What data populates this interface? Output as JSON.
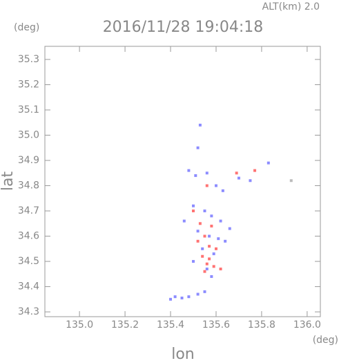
{
  "chart_data": {
    "type": "scatter",
    "title": "2016/11/28 19:04:18",
    "subtitle": "ALT(km) 2.0",
    "y_unit": "(deg)",
    "x_unit": "(deg)",
    "xlabel": "lon",
    "ylabel": "lat",
    "xlim": [
      134.848,
      136.058
    ],
    "ylim": [
      34.281,
      35.352
    ],
    "xticks": [
      {
        "value": 135,
        "label": "135.0"
      },
      135.2,
      135.4,
      135.6,
      135.8,
      {
        "value": 136,
        "label": "136.0"
      }
    ],
    "yticks": [
      34.3,
      34.4,
      34.5,
      34.6,
      34.7,
      34.8,
      34.9,
      {
        "value": 35,
        "label": "35.0"
      },
      35.1,
      35.2,
      35.3
    ],
    "series": [
      {
        "color": "#6f6fff",
        "x": [
          135.53,
          135.52,
          135.48,
          135.51,
          135.56,
          135.6,
          135.63,
          135.7,
          135.75,
          135.83,
          135.5,
          135.55,
          135.58,
          135.62,
          135.46,
          135.52,
          135.57,
          135.61,
          135.66,
          135.54,
          135.59,
          135.64,
          135.5,
          135.56,
          135.58,
          135.42,
          135.45,
          135.48,
          135.52,
          135.4,
          135.55
        ],
        "values": [
          35.04,
          34.95,
          34.86,
          34.84,
          34.85,
          34.8,
          34.78,
          34.83,
          34.82,
          34.89,
          34.72,
          34.7,
          34.68,
          34.66,
          34.66,
          34.62,
          34.6,
          34.59,
          34.63,
          34.55,
          34.53,
          34.58,
          34.5,
          34.47,
          34.44,
          34.36,
          34.355,
          34.36,
          34.37,
          34.35,
          34.38
        ]
      },
      {
        "color": "#ff5050",
        "x": [
          135.77,
          135.69,
          135.56,
          135.5,
          135.53,
          135.58,
          135.55,
          135.52,
          135.57,
          135.6,
          135.54,
          135.56,
          135.59,
          135.55,
          135.62,
          135.57
        ],
        "values": [
          34.86,
          34.85,
          34.8,
          34.7,
          34.65,
          34.64,
          34.6,
          34.58,
          34.56,
          34.55,
          34.52,
          34.49,
          34.48,
          34.46,
          34.47,
          34.51
        ]
      },
      {
        "color": "#aaaaaa",
        "x": [
          135.93
        ],
        "values": [
          34.82
        ]
      }
    ]
  }
}
